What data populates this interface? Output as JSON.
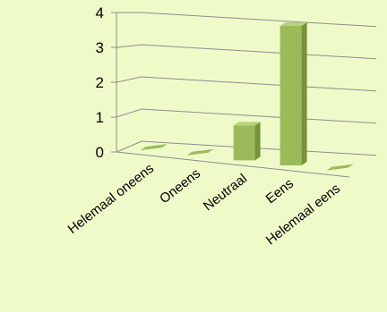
{
  "chart_data": {
    "type": "bar",
    "categories": [
      "Helemaal oneens",
      "Oneens",
      "Neutraal",
      "Eens",
      "Helemaal eens"
    ],
    "values": [
      0,
      0,
      1,
      4,
      0
    ],
    "yticks": [
      "0",
      "1",
      "2",
      "3",
      "4"
    ],
    "ylim": [
      0,
      4
    ],
    "grid": true,
    "legend": "none",
    "colors": {
      "bar_front": "#9bbb59",
      "bar_side": "#76923c",
      "bar_top": "#b7d27a",
      "grid": "#8c8c8c",
      "background": "#eefbc9"
    }
  }
}
